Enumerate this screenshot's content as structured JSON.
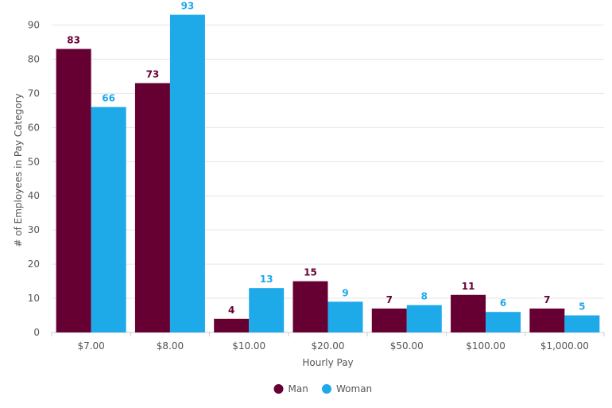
{
  "chart_data": {
    "type": "bar",
    "title": "",
    "xlabel": "Hourly Pay",
    "ylabel": "# of Employees in Pay Category",
    "categories": [
      "$7.00",
      "$8.00",
      "$10.00",
      "$20.00",
      "$50.00",
      "$100.00",
      "$1,000.00"
    ],
    "series": [
      {
        "name": "Man",
        "color": "#660033",
        "values": [
          83,
          73,
          4,
          15,
          7,
          11,
          7
        ]
      },
      {
        "name": "Woman",
        "color": "#1ea9e9",
        "values": [
          66,
          93,
          13,
          9,
          8,
          6,
          5
        ]
      }
    ],
    "ylim": [
      0,
      95
    ],
    "yticks": [
      0,
      10,
      20,
      30,
      40,
      50,
      60,
      70,
      80,
      90
    ],
    "grid": true,
    "legend": "bottom-center"
  }
}
